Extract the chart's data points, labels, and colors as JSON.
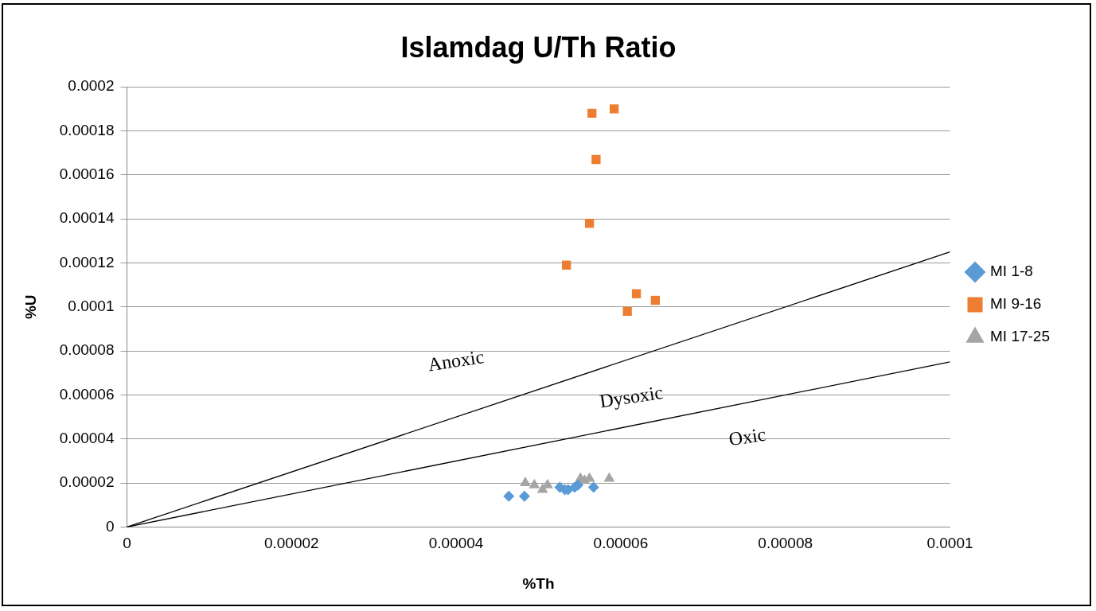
{
  "chart_data": {
    "type": "scatter",
    "title": "Islamdag U/Th Ratio",
    "xlabel": "%Th",
    "ylabel": "%U",
    "xlim": [
      0,
      0.0001
    ],
    "xticks": [
      0,
      {
        "value": 2e-05,
        "label": "0.00002"
      },
      {
        "value": 4e-05,
        "label": "0.00004"
      },
      {
        "value": 6e-05,
        "label": "0.00006"
      },
      {
        "value": 8e-05,
        "label": "0.00008"
      },
      0.0001
    ],
    "ylim": [
      0,
      0.0002
    ],
    "yticks": [
      0,
      {
        "value": 2e-05,
        "label": "0.00002"
      },
      {
        "value": 4e-05,
        "label": "0.00004"
      },
      {
        "value": 6e-05,
        "label": "0.00006"
      },
      {
        "value": 8e-05,
        "label": "0.00008"
      },
      0.0001,
      0.00012,
      0.00014,
      0.00016,
      0.00018,
      0.0002
    ],
    "grid": "y",
    "legend": "right",
    "series": [
      {
        "name": "MI 1-8",
        "color": "#5b9bd5",
        "marker": "diamond",
        "x": [
          4.64e-05,
          4.83e-05,
          5.26e-05,
          5.32e-05,
          5.36e-05,
          5.44e-05,
          5.48e-05,
          5.67e-05
        ],
        "values": [
          1.4e-05,
          1.4e-05,
          1.8e-05,
          1.7e-05,
          1.7e-05,
          1.8e-05,
          1.9e-05,
          1.8e-05
        ]
      },
      {
        "name": "MI 9-16",
        "color": "#ed7d31",
        "marker": "square",
        "x": [
          5.65e-05,
          5.92e-05,
          5.7e-05,
          5.62e-05,
          5.34e-05,
          6.19e-05,
          6.42e-05,
          6.08e-05
        ],
        "values": [
          0.000188,
          0.00019,
          0.000167,
          0.000138,
          0.000119,
          0.000106,
          0.000103,
          9.8e-05
        ]
      },
      {
        "name": "MI 17-25",
        "color": "#a5a5a5",
        "marker": "triangle",
        "x": [
          4.84e-05,
          4.95e-05,
          5.05e-05,
          5.11e-05,
          5.51e-05,
          5.56e-05,
          5.62e-05,
          5.86e-05
        ],
        "values": [
          2e-05,
          1.9e-05,
          1.7e-05,
          1.9e-05,
          2.2e-05,
          2.1e-05,
          2.2e-05,
          2.2e-05
        ]
      },
      {
        "type": "line",
        "color": "#000000",
        "marker": "none",
        "x": [
          0,
          0.0001
        ],
        "values": [
          0,
          0.000125
        ]
      },
      {
        "type": "line",
        "color": "#000000",
        "marker": "none",
        "x": [
          0,
          0.0001
        ],
        "values": [
          0,
          7.5e-05
        ]
      }
    ],
    "annotations": [
      "Anoxic",
      "Dysoxic",
      "Oxic"
    ]
  }
}
